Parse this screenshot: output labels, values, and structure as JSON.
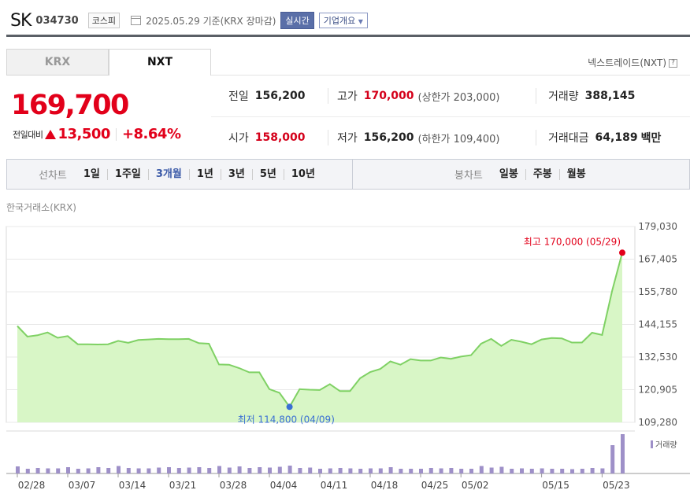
{
  "header": {
    "stock_name": "SK",
    "stock_code": "034730",
    "market_badge": "코스피",
    "date_text": "2025.05.29 기준(KRX 장마감)",
    "realtime_label": "실시간",
    "company_info_label": "기업개요"
  },
  "tabs": [
    {
      "label": "KRX",
      "active": false
    },
    {
      "label": "NXT",
      "active": true
    }
  ],
  "nxt_link": "넥스트레이드(NXT)",
  "help_icon": "?",
  "price": {
    "current": "169,700",
    "change_label": "전일대비",
    "change_value": "13,500",
    "change_pct": "+8.64%",
    "up_color": "#e2001a"
  },
  "stats": {
    "prev_close_label": "전일",
    "prev_close": "156,200",
    "high_label": "고가",
    "high": "170,000",
    "upper_limit": "(상한가 203,000)",
    "volume_label": "거래량",
    "volume": "388,145",
    "open_label": "시가",
    "open": "158,000",
    "low_label": "저가",
    "low": "156,200",
    "lower_limit": "(하한가 109,400)",
    "amount_label": "거래대금",
    "amount": "64,189",
    "amount_unit": "백만"
  },
  "controls": {
    "line_chart_label": "선차트",
    "periods": [
      {
        "label": "1일"
      },
      {
        "label": "1주일"
      },
      {
        "label": "3개월",
        "active": true
      },
      {
        "label": "1년"
      },
      {
        "label": "3년"
      },
      {
        "label": "5년"
      },
      {
        "label": "10년"
      }
    ],
    "candle_chart_label": "봉차트",
    "candles": [
      {
        "label": "일봉"
      },
      {
        "label": "주봉"
      },
      {
        "label": "월봉"
      }
    ]
  },
  "market_label": "한국거래소(KRX)",
  "chart_data": {
    "type": "area",
    "y_ticks": [
      "179,030",
      "167,405",
      "155,780",
      "144,155",
      "132,530",
      "120,905",
      "109,280"
    ],
    "y_tick_values": [
      179030,
      167405,
      155780,
      144155,
      132530,
      120905,
      109280
    ],
    "ylim": [
      109280,
      179030
    ],
    "x_tick_labels": [
      "02/28",
      "03/07",
      "03/14",
      "03/21",
      "03/28",
      "04/04",
      "04/11",
      "04/18",
      "04/25",
      "05/02",
      "05/15",
      "05/23"
    ],
    "x_tick_index": [
      0,
      5,
      10,
      15,
      20,
      25,
      30,
      35,
      40,
      44,
      52,
      58
    ],
    "prices": [
      143600,
      139800,
      140300,
      141300,
      139400,
      140000,
      137100,
      137100,
      137000,
      137100,
      138300,
      137600,
      138600,
      138800,
      139000,
      138900,
      138900,
      139000,
      137500,
      137300,
      129900,
      129800,
      128600,
      127100,
      127100,
      121100,
      119800,
      114800,
      121100,
      120900,
      120800,
      122900,
      120400,
      120400,
      125000,
      127200,
      128300,
      131000,
      129800,
      131800,
      131300,
      131300,
      132400,
      131900,
      132700,
      133200,
      137300,
      139000,
      136500,
      138700,
      138000,
      137100,
      138800,
      139300,
      139200,
      137700,
      137700,
      141200,
      140400,
      156200,
      169700
    ],
    "volumes": [
      0.18,
      0.12,
      0.14,
      0.13,
      0.13,
      0.16,
      0.12,
      0.13,
      0.16,
      0.14,
      0.19,
      0.14,
      0.13,
      0.13,
      0.15,
      0.16,
      0.14,
      0.15,
      0.16,
      0.14,
      0.19,
      0.15,
      0.18,
      0.14,
      0.16,
      0.15,
      0.17,
      0.2,
      0.14,
      0.15,
      0.12,
      0.13,
      0.14,
      0.13,
      0.12,
      0.13,
      0.13,
      0.16,
      0.12,
      0.12,
      0.12,
      0.14,
      0.13,
      0.14,
      0.12,
      0.12,
      0.19,
      0.15,
      0.17,
      0.12,
      0.13,
      0.12,
      0.13,
      0.12,
      0.12,
      0.11,
      0.12,
      0.14,
      0.13,
      0.72,
      1.0
    ],
    "high_annotation": "최고 170,000 (05/29)",
    "low_annotation": "최저 114,800 (04/09)",
    "volume_legend": "거래량",
    "line_color": "#7fd164",
    "fill_color": "#d8f6c6",
    "volume_color": "#9e90c8",
    "high_color": "#e2001a",
    "low_color": "#3a6fd4"
  }
}
